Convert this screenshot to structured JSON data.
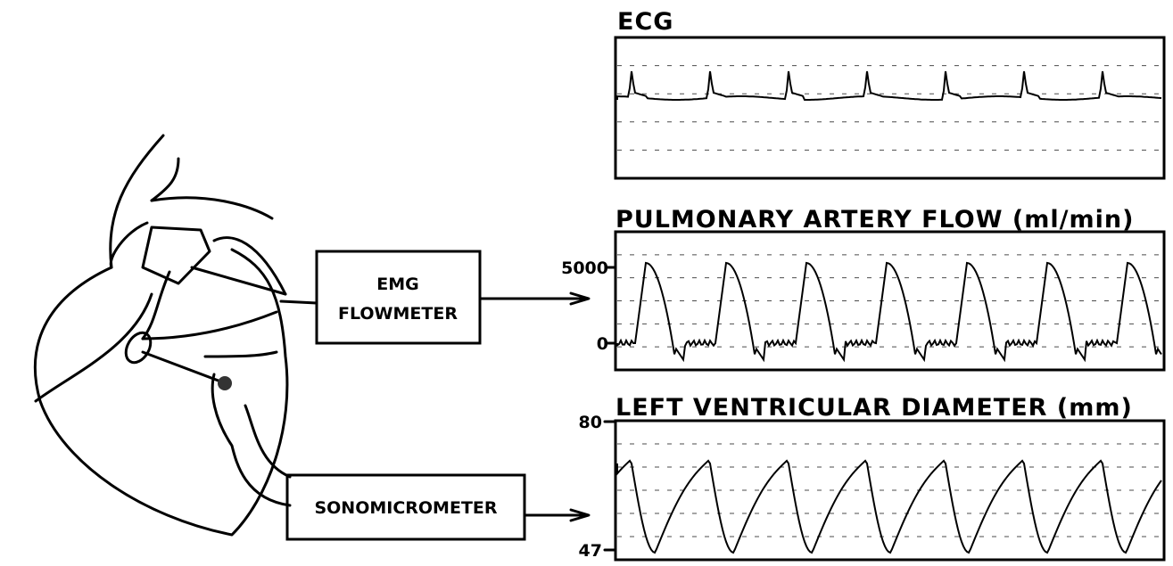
{
  "panels": [
    {
      "title": "ECG"
    },
    {
      "title": "PULMONARY ARTERY FLOW (ml/min)",
      "ticks": [
        "5000",
        "0"
      ]
    },
    {
      "title": "LEFT VENTRICULAR DIAMETER (mm)",
      "ticks": [
        "80",
        "47"
      ]
    }
  ],
  "devices": [
    {
      "lines": [
        "EMG",
        "FLOWMETER"
      ]
    },
    {
      "lines": [
        "SONOMICROMETER"
      ]
    }
  ]
}
